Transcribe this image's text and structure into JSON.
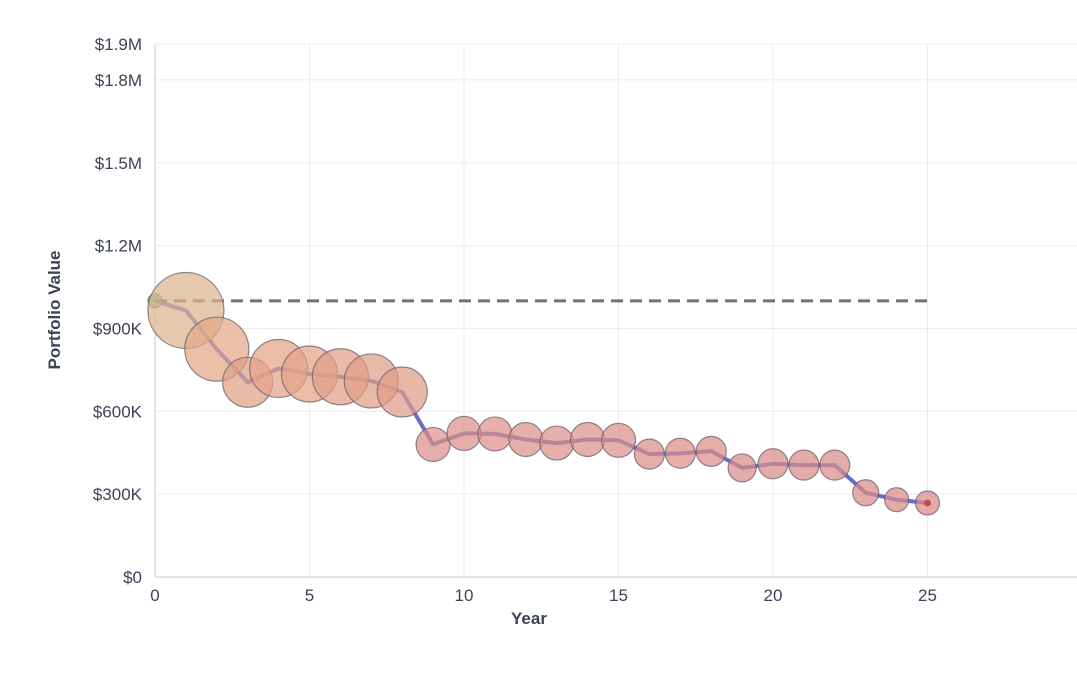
{
  "chart_data": {
    "type": "scatter",
    "title": "",
    "xlabel": "Year",
    "ylabel": "Portfolio Value",
    "xlim": [
      0,
      29.5
    ],
    "ylim": [
      0,
      1930000
    ],
    "x_ticks": [
      {
        "value": 0,
        "label": "0"
      },
      {
        "value": 5,
        "label": "5"
      },
      {
        "value": 10,
        "label": "10"
      },
      {
        "value": 15,
        "label": "15"
      },
      {
        "value": 20,
        "label": "20"
      },
      {
        "value": 25,
        "label": "25"
      }
    ],
    "y_ticks": [
      {
        "value": 0,
        "label": "$0"
      },
      {
        "value": 300000,
        "label": "$300K"
      },
      {
        "value": 600000,
        "label": "$600K"
      },
      {
        "value": 900000,
        "label": "$900K"
      },
      {
        "value": 1200000,
        "label": "$1.2M"
      },
      {
        "value": 1500000,
        "label": "$1.5M"
      },
      {
        "value": 1800000,
        "label": "$1.8M"
      },
      {
        "value": 1930000,
        "label": "$1.9M"
      }
    ],
    "grid": true,
    "reference_line": {
      "value": 1000000,
      "x_range": [
        0,
        25
      ],
      "color": "#6b7280",
      "style": "dashed"
    },
    "line_color": "#6a6cc8",
    "x": [
      0,
      1,
      2,
      3,
      4,
      5,
      6,
      7,
      8,
      9,
      10,
      11,
      12,
      13,
      14,
      15,
      16,
      17,
      18,
      19,
      20,
      21,
      22,
      23,
      24,
      25
    ],
    "y": [
      1000000,
      965000,
      825000,
      705000,
      755000,
      735000,
      725000,
      710000,
      670000,
      480000,
      520000,
      518000,
      498000,
      485000,
      498000,
      495000,
      445000,
      448000,
      455000,
      395000,
      410000,
      405000,
      405000,
      305000,
      280000,
      268000
    ],
    "sizes": [
      2,
      38,
      32,
      25,
      29,
      28,
      28,
      27,
      25,
      17,
      17,
      17,
      17,
      17,
      17,
      17,
      15,
      15,
      15,
      14,
      15,
      15,
      15,
      13,
      12,
      12
    ],
    "colors": [
      "#7cb56a",
      "#d9b48f",
      "#e3a888",
      "#df9f86",
      "#e3a488",
      "#e3a286",
      "#e3a086",
      "#e19e86",
      "#df9b86",
      "#dc9088",
      "#dc9088",
      "#dc9088",
      "#dc9088",
      "#dc9088",
      "#dc9088",
      "#dc9088",
      "#dc8e88",
      "#dc8e88",
      "#dc8e88",
      "#da8c88",
      "#da8c88",
      "#da8c88",
      "#da8c88",
      "#d88a88",
      "#d88a88",
      "#d88a88"
    ]
  }
}
